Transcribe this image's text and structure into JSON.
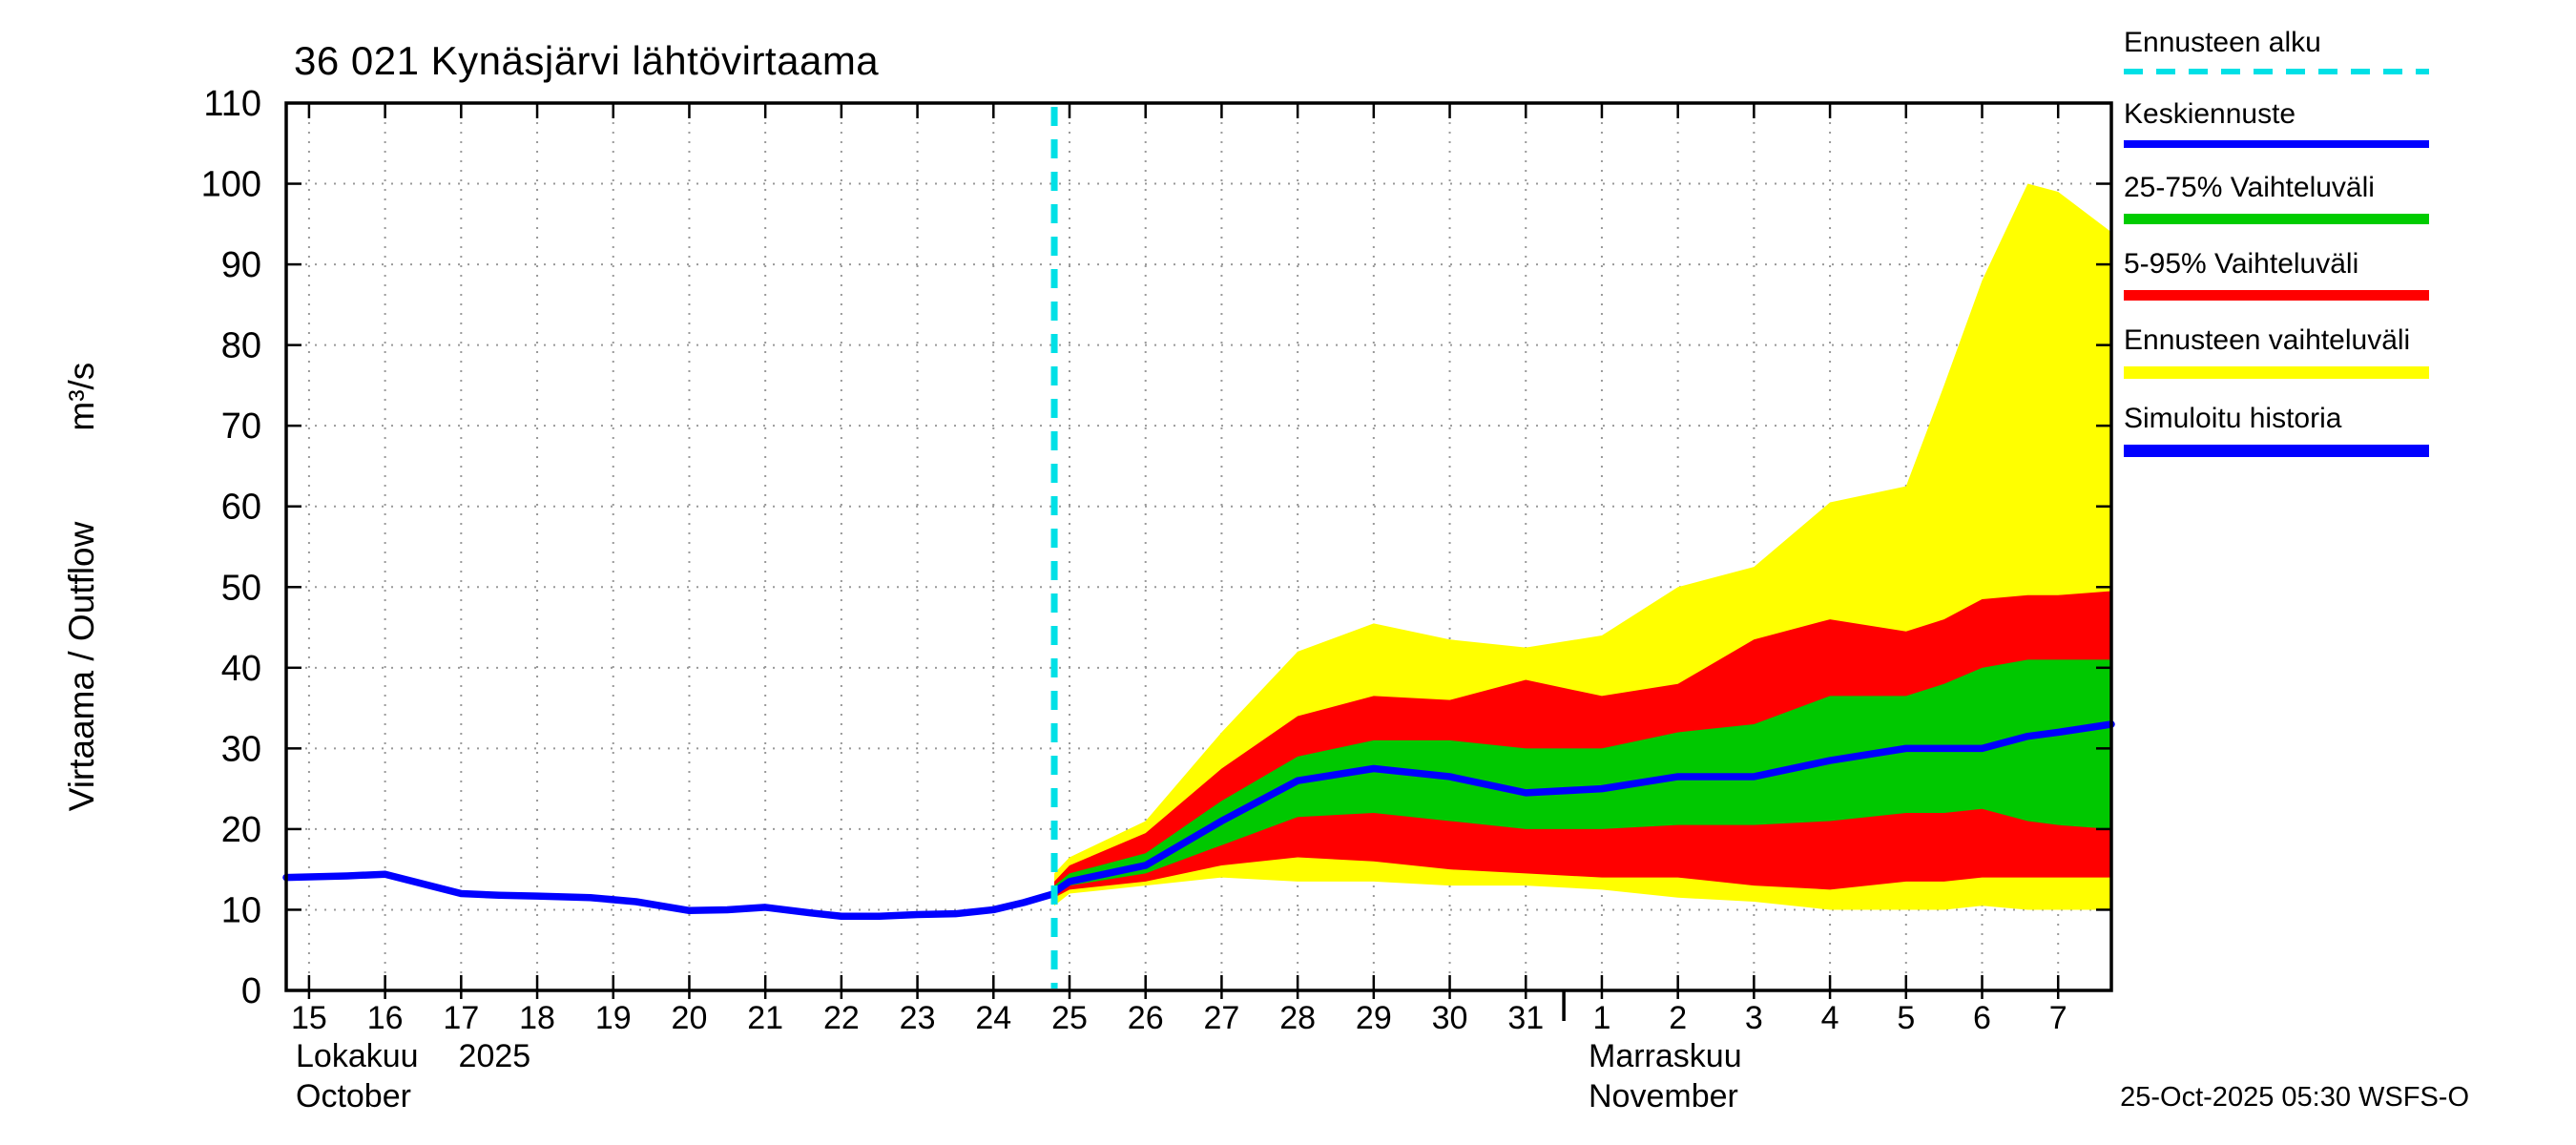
{
  "title": "36 021 Kynäsjärvi lähtövirtaama",
  "y_axis": {
    "title": "Virtaama / Outflow",
    "unit": "m³/s"
  },
  "footer": {
    "timestamp": "25-Oct-2025 05:30 WSFS-O"
  },
  "months": {
    "october": {
      "fi": "Lokakuu",
      "year": "2025",
      "en": "October"
    },
    "november": {
      "fi": "Marraskuu",
      "en": "November"
    }
  },
  "legend": {
    "items": [
      {
        "label": "Ennusteen alku",
        "color": "#00e0e6",
        "style": "dashed",
        "thickness": 6
      },
      {
        "label": "Keskiennuste",
        "color": "#0000ff",
        "style": "solid",
        "thickness": 8
      },
      {
        "label": "25-75% Vaihteluväli",
        "color": "#00cc00",
        "style": "solid",
        "thickness": 11
      },
      {
        "label": "5-95% Vaihteluväli",
        "color": "#ff0000",
        "style": "solid",
        "thickness": 11
      },
      {
        "label": "Ennusteen vaihteluväli",
        "color": "#ffff00",
        "style": "solid",
        "thickness": 13
      },
      {
        "label": "Simuloitu historia",
        "color": "#0000ff",
        "style": "solid",
        "thickness": 13
      }
    ]
  },
  "axes": {
    "y": {
      "min": 0,
      "max": 110,
      "step": 10,
      "labels": [
        "0",
        "10",
        "20",
        "30",
        "40",
        "50",
        "60",
        "70",
        "80",
        "90",
        "100",
        "110"
      ]
    },
    "x": {
      "min": 14.7,
      "max": 38.7,
      "month_boundary": 31.5,
      "ticks": [
        {
          "d": 15,
          "label": "15"
        },
        {
          "d": 16,
          "label": "16"
        },
        {
          "d": 17,
          "label": "17"
        },
        {
          "d": 18,
          "label": "18"
        },
        {
          "d": 19,
          "label": "19"
        },
        {
          "d": 20,
          "label": "20"
        },
        {
          "d": 21,
          "label": "21"
        },
        {
          "d": 22,
          "label": "22"
        },
        {
          "d": 23,
          "label": "23"
        },
        {
          "d": 24,
          "label": "24"
        },
        {
          "d": 25,
          "label": "25"
        },
        {
          "d": 26,
          "label": "26"
        },
        {
          "d": 27,
          "label": "27"
        },
        {
          "d": 28,
          "label": "28"
        },
        {
          "d": 29,
          "label": "29"
        },
        {
          "d": 30,
          "label": "30"
        },
        {
          "d": 31,
          "label": "31"
        },
        {
          "d": 32,
          "label": "1"
        },
        {
          "d": 33,
          "label": "2"
        },
        {
          "d": 34,
          "label": "3"
        },
        {
          "d": 35,
          "label": "4"
        },
        {
          "d": 36,
          "label": "5"
        },
        {
          "d": 37,
          "label": "6"
        },
        {
          "d": 38,
          "label": "7"
        }
      ]
    }
  },
  "colors": {
    "history_median": "#0000ff",
    "forecast_start": "#00e0e6",
    "band_yellow": "#ffff00",
    "band_red": "#ff0000",
    "band_green": "#00c800",
    "grid": "#999999",
    "frame": "#000000"
  },
  "chart_data": {
    "type": "line",
    "title": "36 021 Kynäsjärvi lähtövirtaama",
    "ylabel": "Virtaama / Outflow (m³/s)",
    "ylim": [
      0,
      110
    ],
    "x_note": "x = day of October 2025; November days encoded as 32-38 (Nov 1 = 32 ... Nov 7 = 38)",
    "forecast_start_x": 24.8,
    "history": {
      "name": "Simuloitu historia",
      "x": [
        14.7,
        15.5,
        16,
        16.5,
        17,
        17.5,
        18,
        18.7,
        19.3,
        20,
        20.5,
        21,
        21.6,
        22,
        22.5,
        23,
        23.5,
        24,
        24.4,
        24.8
      ],
      "y": [
        14,
        14.2,
        14.4,
        13.2,
        12,
        11.8,
        11.7,
        11.5,
        11,
        9.9,
        10,
        10.3,
        9.6,
        9.2,
        9.2,
        9.4,
        9.5,
        10,
        10.9,
        12
      ]
    },
    "forecast_x": [
      24.8,
      25,
      26,
      27,
      28,
      29,
      30,
      31,
      32,
      33,
      34,
      35,
      36,
      36.5,
      37,
      37.6,
      38,
      38.7
    ],
    "median": {
      "name": "Keskiennuste",
      "y": [
        12.2,
        13.5,
        15.5,
        21,
        26,
        27.5,
        26.5,
        24.5,
        25,
        26.5,
        26.5,
        28.5,
        30,
        30,
        30,
        31.5,
        32,
        33
      ]
    },
    "bands": [
      {
        "name": "Ennusteen vaihteluväli",
        "color_key": "band_yellow",
        "upper": [
          14.5,
          16.5,
          21,
          32,
          42,
          45.5,
          43.5,
          42.5,
          44,
          50,
          52.5,
          60.5,
          62.5,
          75,
          88,
          100,
          99,
          94
        ],
        "lower": [
          10.5,
          12,
          13,
          14,
          13.5,
          13.5,
          13,
          13,
          12.5,
          11.5,
          11,
          10,
          10,
          10,
          10.5,
          10,
          10,
          10
        ]
      },
      {
        "name": "5-95% Vaihteluväli",
        "color_key": "band_red",
        "upper": [
          13.5,
          15.5,
          19.5,
          27.5,
          34,
          36.5,
          36,
          38.5,
          36.5,
          38,
          43.5,
          46,
          44.5,
          46,
          48.5,
          49,
          49,
          49.5
        ],
        "lower": [
          11.5,
          12.5,
          13.5,
          15.5,
          16.5,
          16,
          15,
          14.5,
          14,
          14,
          13,
          12.5,
          13.5,
          13.5,
          14,
          14,
          14,
          14
        ]
      },
      {
        "name": "25-75% Vaihteluväli",
        "color_key": "band_green",
        "upper": [
          13,
          14.5,
          17,
          23.5,
          29,
          31,
          31,
          30,
          30,
          32,
          33,
          36.5,
          36.5,
          38,
          40,
          41,
          41,
          41
        ],
        "lower": [
          12,
          13,
          14.5,
          18,
          21.5,
          22,
          21,
          20,
          20,
          20.5,
          20.5,
          21,
          22,
          22,
          22.5,
          21,
          20.5,
          20
        ]
      }
    ]
  }
}
